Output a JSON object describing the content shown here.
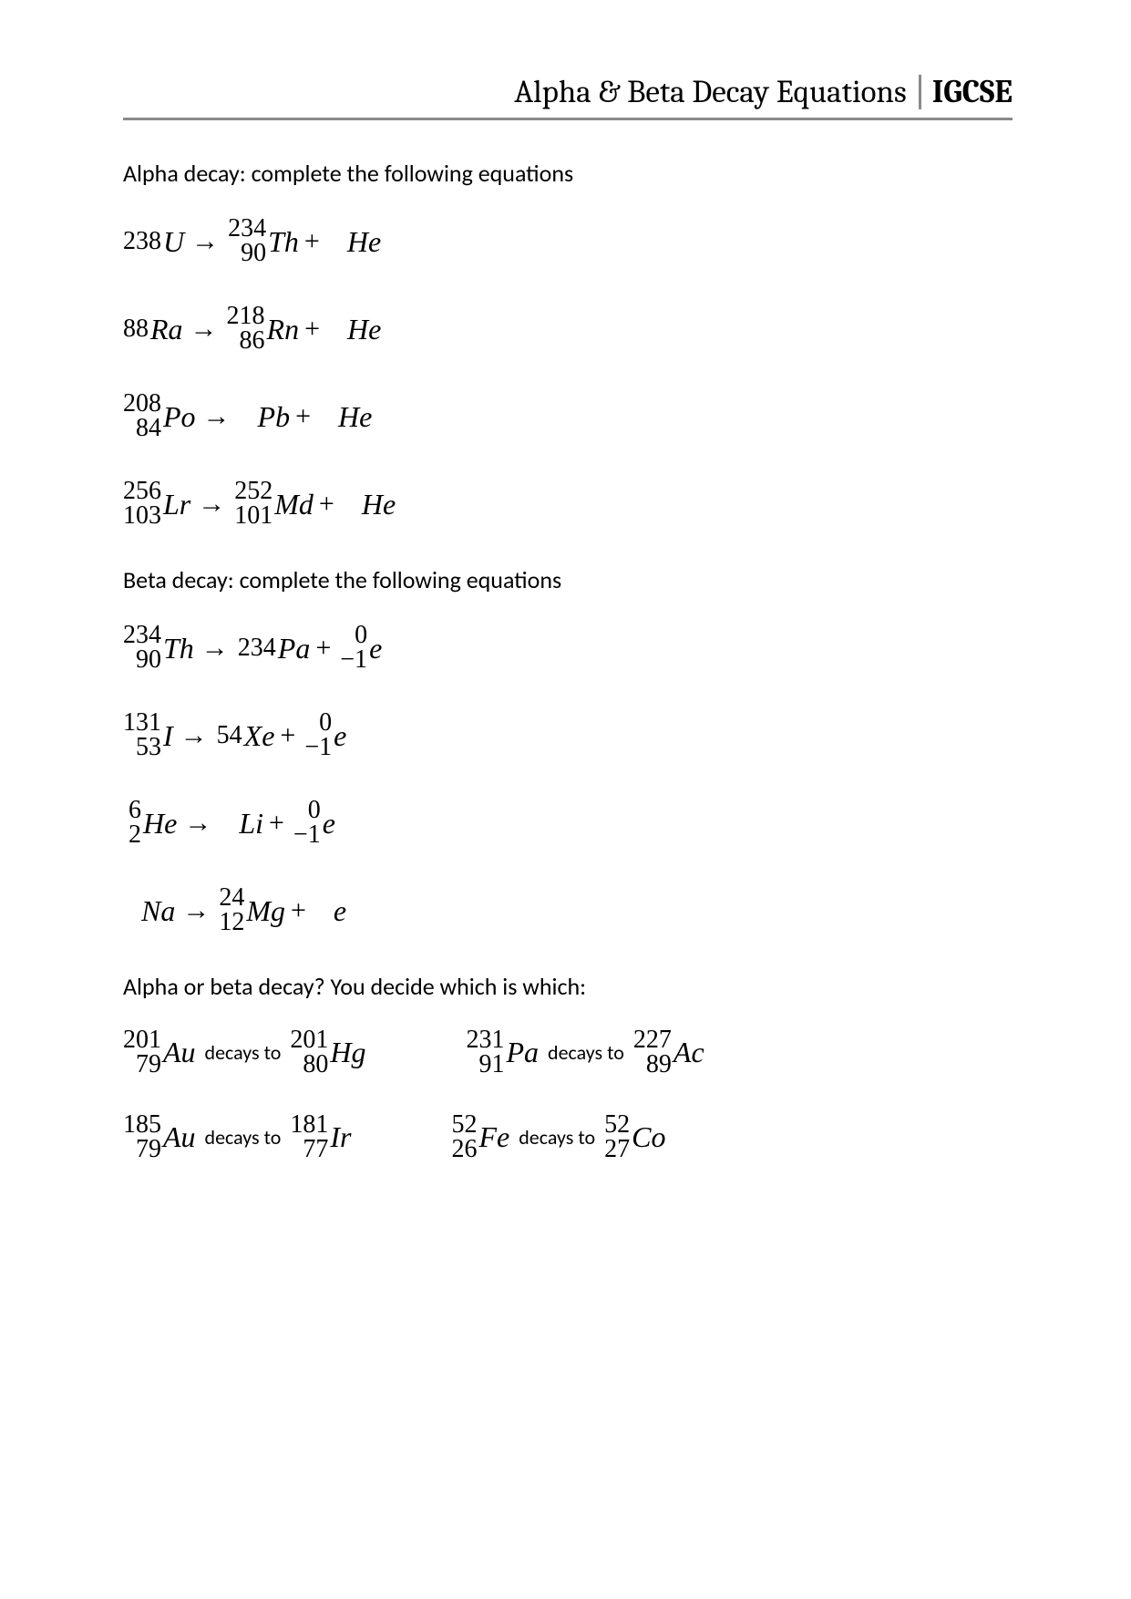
{
  "header": {
    "title": "Alpha & Beta Decay Equations",
    "level": "IGCSE"
  },
  "colors": {
    "text": "#000000",
    "background": "#ffffff",
    "rule": "#8a8a8a"
  },
  "typography": {
    "header_font": "Cambria",
    "body_font": "Calibri",
    "equation_font": "Times New Roman",
    "header_fontsize": 35,
    "section_fontsize": 26,
    "equation_fontsize": 32,
    "nuclide_number_fontsize": 28
  },
  "sections": {
    "alpha_heading": "Alpha decay: complete the following equations",
    "beta_heading": "Beta decay: complete the following equations",
    "decide_heading": "Alpha or beta decay? You decide which is which:",
    "decays_to_label": "decays to"
  },
  "alpha_equations": [
    {
      "reactant": {
        "mass": "238",
        "atomic": "",
        "symbol": "U"
      },
      "product": {
        "mass": "234",
        "atomic": "90",
        "symbol": "Th"
      },
      "particle": {
        "mass": "",
        "atomic": "",
        "symbol": "He"
      }
    },
    {
      "reactant": {
        "mass": "",
        "atomic": "88",
        "symbol": "Ra"
      },
      "product": {
        "mass": "218",
        "atomic": "86",
        "symbol": "Rn"
      },
      "particle": {
        "mass": "",
        "atomic": "",
        "symbol": "He"
      }
    },
    {
      "reactant": {
        "mass": "208",
        "atomic": "84",
        "symbol": "Po"
      },
      "product": {
        "mass": "",
        "atomic": "",
        "symbol": "Pb"
      },
      "particle": {
        "mass": "",
        "atomic": "",
        "symbol": "He"
      }
    },
    {
      "reactant": {
        "mass": "256",
        "atomic": "103",
        "symbol": "Lr"
      },
      "product": {
        "mass": "252",
        "atomic": "101",
        "symbol": "Md"
      },
      "particle": {
        "mass": "",
        "atomic": "",
        "symbol": "He"
      }
    }
  ],
  "beta_equations": [
    {
      "reactant": {
        "mass": "234",
        "atomic": "90",
        "symbol": "Th"
      },
      "product": {
        "mass": "234",
        "atomic": "",
        "symbol": "Pa"
      },
      "particle": {
        "mass": "0",
        "atomic": "−1",
        "symbol": "e"
      }
    },
    {
      "reactant": {
        "mass": "131",
        "atomic": "53",
        "symbol": "I"
      },
      "product": {
        "mass": "",
        "atomic": "54",
        "symbol": "Xe"
      },
      "particle": {
        "mass": "0",
        "atomic": "−1",
        "symbol": "e"
      }
    },
    {
      "reactant": {
        "mass": "6",
        "atomic": "2",
        "symbol": "He"
      },
      "product": {
        "mass": "",
        "atomic": "",
        "symbol": "Li"
      },
      "particle": {
        "mass": "0",
        "atomic": "−1",
        "symbol": "e"
      }
    },
    {
      "reactant": {
        "mass": "",
        "atomic": "",
        "symbol": "Na"
      },
      "product": {
        "mass": "24",
        "atomic": "12",
        "symbol": "Mg"
      },
      "particle": {
        "mass": "",
        "atomic": "",
        "symbol": "e"
      }
    }
  ],
  "decide": [
    [
      {
        "from": {
          "mass": "201",
          "atomic": "79",
          "symbol": "Au"
        },
        "to": {
          "mass": "201",
          "atomic": "80",
          "symbol": "Hg"
        }
      },
      {
        "from": {
          "mass": "231",
          "atomic": "91",
          "symbol": "Pa"
        },
        "to": {
          "mass": "227",
          "atomic": "89",
          "symbol": "Ac"
        }
      }
    ],
    [
      {
        "from": {
          "mass": "185",
          "atomic": "79",
          "symbol": "Au"
        },
        "to": {
          "mass": "181",
          "atomic": "77",
          "symbol": "Ir"
        }
      },
      {
        "from": {
          "mass": "52",
          "atomic": "26",
          "symbol": "Fe"
        },
        "to": {
          "mass": "52",
          "atomic": "27",
          "symbol": "Co"
        }
      }
    ]
  ],
  "symbols": {
    "arrow": "→",
    "plus": "+"
  }
}
